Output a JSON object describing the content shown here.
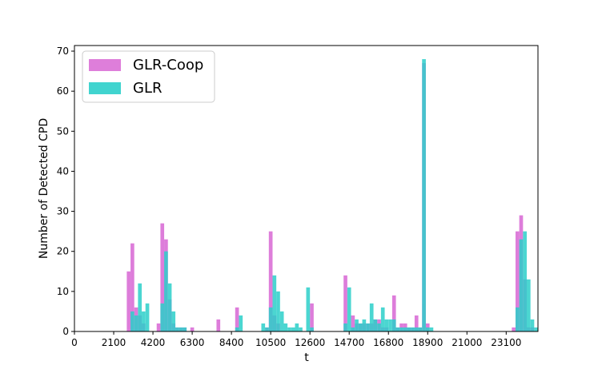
{
  "chart_data": {
    "type": "histogram",
    "xlabel": "t",
    "ylabel": "Number of Detected CPD",
    "bins": [
      2800,
      3000,
      3200,
      3400,
      3600,
      3800,
      4000,
      4200,
      4400,
      4600,
      4800,
      5000,
      5200,
      5400,
      5600,
      5800,
      6000,
      6200,
      6400,
      6600,
      6800,
      7000,
      7200,
      7400,
      7600,
      7800,
      8000,
      8200,
      8400,
      8600,
      8800,
      9000,
      9200,
      9400,
      9600,
      9800,
      10000,
      10200,
      10400,
      10600,
      10800,
      11000,
      11200,
      11400,
      11600,
      11800,
      12000,
      12200,
      12400,
      12600,
      12800,
      13000,
      13200,
      13400,
      13600,
      13800,
      14000,
      14200,
      14400,
      14600,
      14800,
      15000,
      15200,
      15400,
      15600,
      15800,
      16000,
      16200,
      16400,
      16600,
      16800,
      17000,
      17200,
      17400,
      17600,
      17800,
      18000,
      18200,
      18400,
      18600,
      18800,
      19000,
      19200,
      19400,
      19600,
      19800,
      20000,
      20200,
      20400,
      20600,
      20800,
      21000,
      21200,
      21400,
      21600,
      21800,
      22000,
      22200,
      22400,
      22600,
      22800,
      23000,
      23200,
      23400,
      23600,
      23800,
      24000,
      24200,
      24400,
      24600,
      24800
    ],
    "series": [
      {
        "name": "GLR-Coop",
        "color": "#da70d6",
        "values": [
          15,
          22,
          6,
          4,
          2,
          0,
          0,
          0,
          2,
          27,
          23,
          8,
          2,
          1,
          1,
          1,
          0,
          1,
          0,
          0,
          0,
          0,
          0,
          0,
          3,
          0,
          0,
          0,
          0,
          6,
          0,
          0,
          0,
          0,
          0,
          0,
          0,
          1,
          25,
          4,
          2,
          0,
          0,
          0,
          0,
          0,
          0,
          0,
          0,
          7,
          0,
          0,
          0,
          0,
          0,
          0,
          0,
          0,
          14,
          0,
          4,
          2,
          2,
          2,
          2,
          2,
          3,
          3,
          1,
          1,
          0,
          9,
          1,
          2,
          2,
          1,
          1,
          4,
          1,
          67,
          2,
          0,
          0,
          0,
          0,
          0,
          0,
          0,
          0,
          0,
          0,
          0,
          0,
          0,
          0,
          0,
          0,
          0,
          0,
          0,
          0,
          0,
          0,
          1,
          25,
          29,
          13,
          1,
          1,
          0
        ]
      },
      {
        "name": "GLR",
        "color": "#2ccfca",
        "values": [
          0,
          5,
          4,
          12,
          5,
          7,
          0,
          0,
          0,
          7,
          20,
          12,
          5,
          1,
          1,
          1,
          0,
          0,
          0,
          0,
          0,
          0,
          0,
          0,
          0,
          0,
          0,
          0,
          0,
          1,
          4,
          0,
          0,
          0,
          0,
          0,
          2,
          1,
          6,
          14,
          10,
          5,
          2,
          1,
          1,
          2,
          1,
          0,
          11,
          1,
          0,
          0,
          0,
          0,
          0,
          0,
          0,
          0,
          2,
          11,
          1,
          3,
          2,
          3,
          2,
          7,
          3,
          2,
          6,
          3,
          3,
          3,
          1,
          1,
          1,
          1,
          1,
          1,
          1,
          68,
          1,
          1,
          0,
          0,
          0,
          0,
          0,
          0,
          0,
          0,
          0,
          0,
          0,
          0,
          0,
          0,
          0,
          0,
          0,
          0,
          0,
          0,
          0,
          0,
          6,
          23,
          25,
          13,
          3,
          1
        ]
      }
    ],
    "xlim": [
      0,
      24800
    ],
    "xticks": [
      0,
      2100,
      4200,
      6300,
      8400,
      10500,
      12600,
      14700,
      16800,
      18900,
      21000,
      23100
    ],
    "ylim": [
      0,
      71.4
    ],
    "yticks": [
      0,
      10,
      20,
      30,
      40,
      50,
      60,
      70
    ],
    "legend": "upper left"
  }
}
